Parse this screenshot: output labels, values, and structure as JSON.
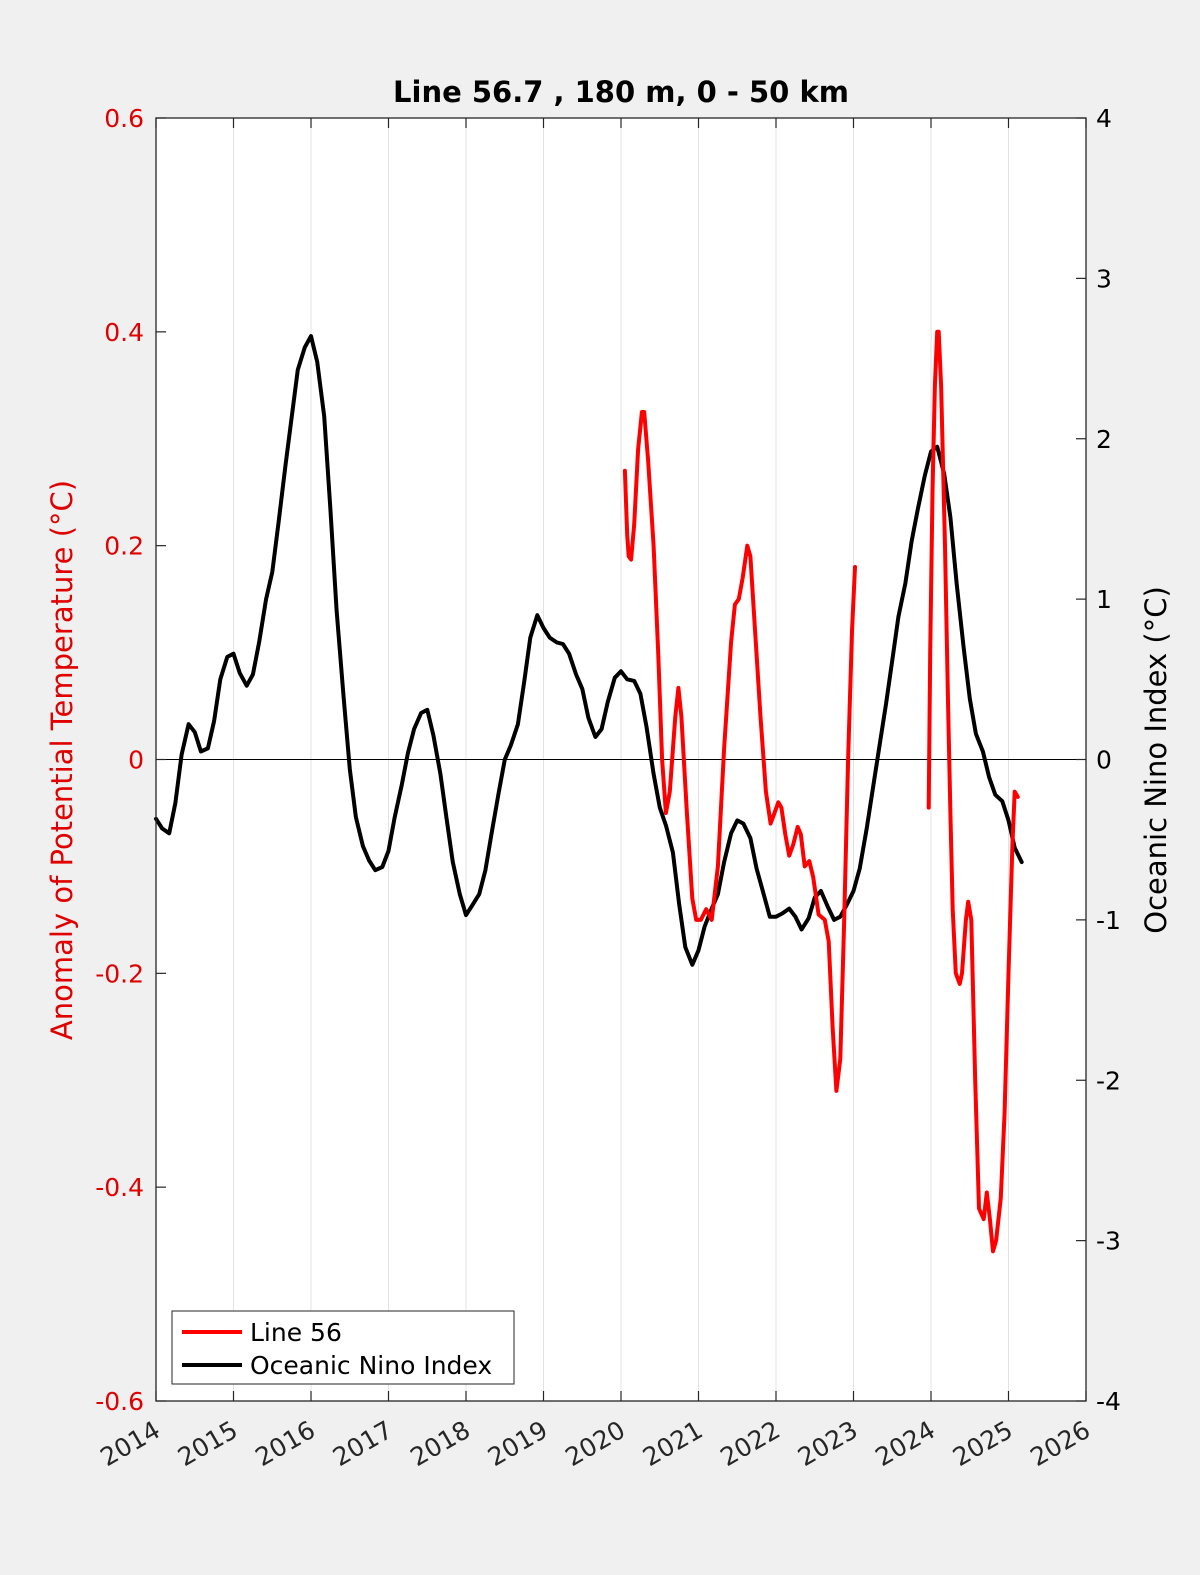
{
  "chart_data": {
    "type": "line",
    "title": "Line 56.7 , 180 m, 0 - 50 km",
    "ylabel": "Anomaly of Potential Temperature (°C)",
    "ylabel_right": "Oceanic Nino Index (°C)",
    "xlim": [
      2014,
      2026
    ],
    "ylim": [
      -0.6,
      0.6
    ],
    "ylim_right": [
      -4,
      4
    ],
    "x_ticks": [
      "2014",
      "2015",
      "2016",
      "2017",
      "2018",
      "2019",
      "2020",
      "2021",
      "2022",
      "2023",
      "2024",
      "2025",
      "2026"
    ],
    "y_ticks": [
      "0.6",
      "0.4",
      "0.2",
      "0",
      "-0.2",
      "-0.4",
      "-0.6"
    ],
    "y_right_ticks": [
      "4",
      "3",
      "2",
      "1",
      "0",
      "-1",
      "-2",
      "-3",
      "-4"
    ],
    "grid": "vertical",
    "legend_position": "bottom-left",
    "colors": {
      "line56": "#ff0000",
      "oni": "#000000",
      "left_axis": "#e00000"
    },
    "series": [
      {
        "name": "Line 56",
        "axis": "left",
        "segments": [
          [
            [
              2020.05,
              0.27
            ],
            [
              2020.08,
              0.21
            ],
            [
              2020.1,
              0.19
            ],
            [
              2020.13,
              0.187
            ],
            [
              2020.17,
              0.22
            ],
            [
              2020.22,
              0.29
            ],
            [
              2020.27,
              0.325
            ],
            [
              2020.3,
              0.325
            ],
            [
              2020.35,
              0.28
            ],
            [
              2020.42,
              0.2
            ],
            [
              2020.48,
              0.1
            ],
            [
              2020.53,
              0.0
            ],
            [
              2020.58,
              -0.05
            ],
            [
              2020.63,
              -0.03
            ],
            [
              2020.7,
              0.04
            ],
            [
              2020.74,
              0.067
            ],
            [
              2020.78,
              0.04
            ],
            [
              2020.85,
              -0.05
            ],
            [
              2020.92,
              -0.13
            ],
            [
              2020.97,
              -0.15
            ],
            [
              2021.03,
              -0.15
            ],
            [
              2021.1,
              -0.14
            ],
            [
              2021.17,
              -0.15
            ],
            [
              2021.25,
              -0.1
            ],
            [
              2021.33,
              0.01
            ],
            [
              2021.42,
              0.11
            ],
            [
              2021.47,
              0.145
            ],
            [
              2021.52,
              0.15
            ],
            [
              2021.57,
              0.17
            ],
            [
              2021.63,
              0.2
            ],
            [
              2021.67,
              0.19
            ],
            [
              2021.73,
              0.12
            ],
            [
              2021.8,
              0.04
            ],
            [
              2021.87,
              -0.03
            ],
            [
              2021.93,
              -0.06
            ],
            [
              2021.98,
              -0.05
            ],
            [
              2022.03,
              -0.04
            ],
            [
              2022.07,
              -0.045
            ],
            [
              2022.12,
              -0.07
            ],
            [
              2022.17,
              -0.09
            ],
            [
              2022.22,
              -0.08
            ],
            [
              2022.28,
              -0.063
            ],
            [
              2022.32,
              -0.07
            ],
            [
              2022.37,
              -0.1
            ],
            [
              2022.43,
              -0.095
            ],
            [
              2022.48,
              -0.11
            ],
            [
              2022.55,
              -0.145
            ],
            [
              2022.63,
              -0.15
            ],
            [
              2022.68,
              -0.17
            ],
            [
              2022.73,
              -0.25
            ],
            [
              2022.78,
              -0.31
            ],
            [
              2022.83,
              -0.28
            ],
            [
              2022.88,
              -0.15
            ],
            [
              2022.93,
              0.0
            ],
            [
              2022.98,
              0.12
            ],
            [
              2023.02,
              0.18
            ]
          ],
          [
            [
              2023.97,
              -0.045
            ],
            [
              2023.99,
              0.1
            ],
            [
              2024.02,
              0.25
            ],
            [
              2024.05,
              0.35
            ],
            [
              2024.08,
              0.4
            ],
            [
              2024.1,
              0.4
            ],
            [
              2024.13,
              0.35
            ],
            [
              2024.18,
              0.2
            ],
            [
              2024.22,
              0.05
            ],
            [
              2024.25,
              -0.05
            ],
            [
              2024.28,
              -0.14
            ],
            [
              2024.32,
              -0.2
            ],
            [
              2024.37,
              -0.21
            ],
            [
              2024.4,
              -0.2
            ],
            [
              2024.45,
              -0.15
            ],
            [
              2024.48,
              -0.133
            ],
            [
              2024.52,
              -0.15
            ],
            [
              2024.57,
              -0.3
            ],
            [
              2024.62,
              -0.42
            ],
            [
              2024.68,
              -0.43
            ],
            [
              2024.72,
              -0.405
            ],
            [
              2024.76,
              -0.43
            ],
            [
              2024.8,
              -0.46
            ],
            [
              2024.84,
              -0.45
            ],
            [
              2024.9,
              -0.41
            ],
            [
              2024.95,
              -0.33
            ],
            [
              2025.0,
              -0.2
            ],
            [
              2025.05,
              -0.08
            ],
            [
              2025.08,
              -0.03
            ],
            [
              2025.12,
              -0.035
            ]
          ]
        ]
      },
      {
        "name": "Oceanic Nino Index",
        "axis": "right",
        "segments": [
          [
            [
              2014.0,
              -0.37
            ],
            [
              2014.08,
              -0.43
            ],
            [
              2014.17,
              -0.46
            ],
            [
              2014.25,
              -0.27
            ],
            [
              2014.33,
              0.03
            ],
            [
              2014.42,
              0.22
            ],
            [
              2014.5,
              0.17
            ],
            [
              2014.58,
              0.05
            ],
            [
              2014.67,
              0.07
            ],
            [
              2014.75,
              0.24
            ],
            [
              2014.83,
              0.5
            ],
            [
              2014.92,
              0.64
            ],
            [
              2015.0,
              0.66
            ],
            [
              2015.08,
              0.54
            ],
            [
              2015.17,
              0.46
            ],
            [
              2015.25,
              0.53
            ],
            [
              2015.33,
              0.73
            ],
            [
              2015.42,
              1.0
            ],
            [
              2015.5,
              1.17
            ],
            [
              2015.58,
              1.47
            ],
            [
              2015.67,
              1.83
            ],
            [
              2015.75,
              2.13
            ],
            [
              2015.83,
              2.43
            ],
            [
              2015.92,
              2.57
            ],
            [
              2016.0,
              2.64
            ],
            [
              2016.08,
              2.48
            ],
            [
              2016.17,
              2.14
            ],
            [
              2016.25,
              1.56
            ],
            [
              2016.33,
              0.93
            ],
            [
              2016.42,
              0.39
            ],
            [
              2016.5,
              -0.06
            ],
            [
              2016.58,
              -0.36
            ],
            [
              2016.67,
              -0.54
            ],
            [
              2016.75,
              -0.63
            ],
            [
              2016.83,
              -0.69
            ],
            [
              2016.92,
              -0.67
            ],
            [
              2017.0,
              -0.57
            ],
            [
              2017.08,
              -0.36
            ],
            [
              2017.17,
              -0.16
            ],
            [
              2017.25,
              0.04
            ],
            [
              2017.33,
              0.19
            ],
            [
              2017.42,
              0.29
            ],
            [
              2017.5,
              0.31
            ],
            [
              2017.58,
              0.15
            ],
            [
              2017.67,
              -0.09
            ],
            [
              2017.75,
              -0.37
            ],
            [
              2017.83,
              -0.64
            ],
            [
              2017.92,
              -0.84
            ],
            [
              2018.0,
              -0.97
            ],
            [
              2018.08,
              -0.91
            ],
            [
              2018.17,
              -0.84
            ],
            [
              2018.25,
              -0.69
            ],
            [
              2018.33,
              -0.46
            ],
            [
              2018.42,
              -0.21
            ],
            [
              2018.5,
              0.0
            ],
            [
              2018.58,
              0.09
            ],
            [
              2018.67,
              0.22
            ],
            [
              2018.75,
              0.48
            ],
            [
              2018.83,
              0.76
            ],
            [
              2018.92,
              0.9
            ],
            [
              2019.0,
              0.82
            ],
            [
              2019.08,
              0.76
            ],
            [
              2019.17,
              0.73
            ],
            [
              2019.25,
              0.72
            ],
            [
              2019.33,
              0.66
            ],
            [
              2019.42,
              0.53
            ],
            [
              2019.5,
              0.44
            ],
            [
              2019.58,
              0.26
            ],
            [
              2019.67,
              0.14
            ],
            [
              2019.75,
              0.19
            ],
            [
              2019.83,
              0.36
            ],
            [
              2019.92,
              0.51
            ],
            [
              2020.0,
              0.55
            ],
            [
              2020.08,
              0.5
            ],
            [
              2020.17,
              0.49
            ],
            [
              2020.25,
              0.41
            ],
            [
              2020.33,
              0.2
            ],
            [
              2020.42,
              -0.09
            ],
            [
              2020.5,
              -0.3
            ],
            [
              2020.58,
              -0.41
            ],
            [
              2020.67,
              -0.58
            ],
            [
              2020.75,
              -0.9
            ],
            [
              2020.83,
              -1.17
            ],
            [
              2020.92,
              -1.28
            ],
            [
              2021.0,
              -1.19
            ],
            [
              2021.08,
              -1.04
            ],
            [
              2021.17,
              -0.93
            ],
            [
              2021.25,
              -0.84
            ],
            [
              2021.33,
              -0.64
            ],
            [
              2021.42,
              -0.46
            ],
            [
              2021.5,
              -0.38
            ],
            [
              2021.58,
              -0.4
            ],
            [
              2021.67,
              -0.49
            ],
            [
              2021.75,
              -0.68
            ],
            [
              2021.83,
              -0.82
            ],
            [
              2021.92,
              -0.98
            ],
            [
              2022.0,
              -0.98
            ],
            [
              2022.08,
              -0.96
            ],
            [
              2022.17,
              -0.93
            ],
            [
              2022.25,
              -0.98
            ],
            [
              2022.33,
              -1.06
            ],
            [
              2022.42,
              -0.99
            ],
            [
              2022.5,
              -0.86
            ],
            [
              2022.58,
              -0.82
            ],
            [
              2022.67,
              -0.92
            ],
            [
              2022.75,
              -1.0
            ],
            [
              2022.83,
              -0.98
            ],
            [
              2022.92,
              -0.9
            ],
            [
              2023.0,
              -0.82
            ],
            [
              2023.08,
              -0.68
            ],
            [
              2023.17,
              -0.43
            ],
            [
              2023.25,
              -0.18
            ],
            [
              2023.33,
              0.07
            ],
            [
              2023.42,
              0.35
            ],
            [
              2023.5,
              0.62
            ],
            [
              2023.58,
              0.89
            ],
            [
              2023.67,
              1.1
            ],
            [
              2023.75,
              1.36
            ],
            [
              2023.83,
              1.56
            ],
            [
              2023.92,
              1.77
            ],
            [
              2024.0,
              1.92
            ],
            [
              2024.08,
              1.95
            ],
            [
              2024.17,
              1.78
            ],
            [
              2024.25,
              1.51
            ],
            [
              2024.33,
              1.1
            ],
            [
              2024.42,
              0.7
            ],
            [
              2024.5,
              0.38
            ],
            [
              2024.58,
              0.16
            ],
            [
              2024.67,
              0.05
            ],
            [
              2024.75,
              -0.11
            ],
            [
              2024.83,
              -0.22
            ],
            [
              2024.92,
              -0.26
            ],
            [
              2025.0,
              -0.38
            ],
            [
              2025.08,
              -0.55
            ],
            [
              2025.17,
              -0.64
            ]
          ]
        ]
      }
    ]
  }
}
